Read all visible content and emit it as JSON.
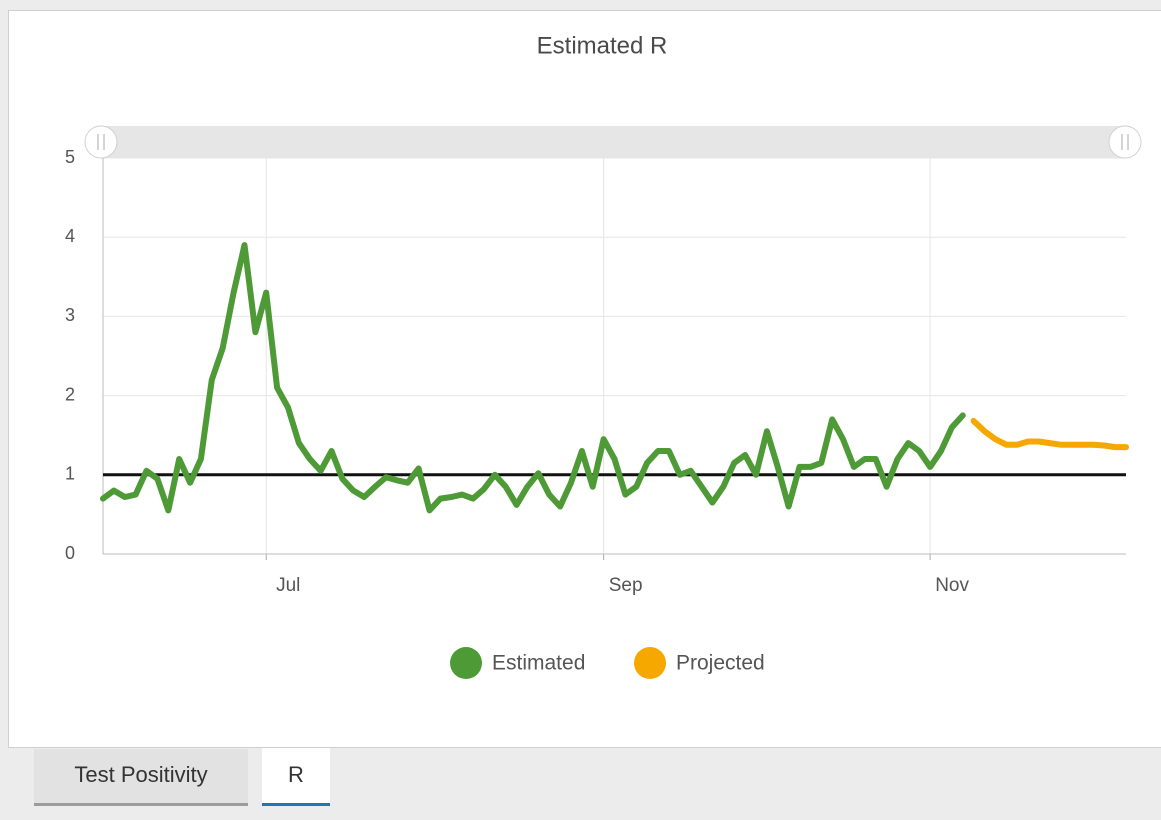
{
  "chart_data": {
    "type": "line",
    "title": "Estimated R",
    "categories": [
      null,
      null,
      null,
      null,
      null,
      null,
      null,
      null,
      null,
      null,
      null,
      null,
      null,
      null,
      null,
      "Jul",
      null,
      null,
      null,
      null,
      null,
      null,
      null,
      null,
      null,
      null,
      null,
      null,
      null,
      null,
      null,
      null,
      null,
      null,
      null,
      null,
      null,
      null,
      null,
      null,
      null,
      null,
      null,
      null,
      null,
      null,
      "Sep",
      null,
      null,
      null,
      null,
      null,
      null,
      null,
      null,
      null,
      null,
      null,
      null,
      null,
      null,
      null,
      null,
      null,
      null,
      null,
      null,
      null,
      null,
      null,
      null,
      null,
      null,
      null,
      null,
      null,
      "Nov",
      null,
      null,
      null,
      null,
      null,
      null,
      null,
      null,
      null,
      null,
      null,
      null,
      null,
      null,
      null,
      null,
      null,
      null
    ],
    "series": [
      {
        "name": "Estimated",
        "color": "#4e9a36",
        "values": [
          0.7,
          0.8,
          0.72,
          0.75,
          1.05,
          0.95,
          0.55,
          1.2,
          0.9,
          1.2,
          2.2,
          2.6,
          3.3,
          3.9,
          2.8,
          3.3,
          2.1,
          1.85,
          1.4,
          1.2,
          1.05,
          1.3,
          0.95,
          0.8,
          0.72,
          0.85,
          0.97,
          0.93,
          0.9,
          1.08,
          0.55,
          0.7,
          0.72,
          0.75,
          0.7,
          0.82,
          1.0,
          0.85,
          0.62,
          0.85,
          1.02,
          0.75,
          0.6,
          0.9,
          1.3,
          0.85,
          1.45,
          1.2,
          0.75,
          0.85,
          1.15,
          1.3,
          1.3,
          1.0,
          1.05,
          0.85,
          0.65,
          0.85,
          1.15,
          1.25,
          1.0,
          1.55,
          1.1,
          0.6,
          1.1,
          1.1,
          1.15,
          1.7,
          1.45,
          1.1,
          1.2,
          1.2,
          0.85,
          1.2,
          1.4,
          1.3,
          1.1,
          1.3,
          1.6,
          1.75,
          null,
          null,
          null,
          null,
          null,
          null,
          null,
          null,
          null,
          null,
          null,
          null,
          null,
          null,
          null
        ]
      },
      {
        "name": "Projected",
        "color": "#f7a800",
        "values": [
          null,
          null,
          null,
          null,
          null,
          null,
          null,
          null,
          null,
          null,
          null,
          null,
          null,
          null,
          null,
          null,
          null,
          null,
          null,
          null,
          null,
          null,
          null,
          null,
          null,
          null,
          null,
          null,
          null,
          null,
          null,
          null,
          null,
          null,
          null,
          null,
          null,
          null,
          null,
          null,
          null,
          null,
          null,
          null,
          null,
          null,
          null,
          null,
          null,
          null,
          null,
          null,
          null,
          null,
          null,
          null,
          null,
          null,
          null,
          null,
          null,
          null,
          null,
          null,
          null,
          null,
          null,
          null,
          null,
          null,
          null,
          null,
          null,
          null,
          null,
          null,
          null,
          null,
          null,
          null,
          1.68,
          1.55,
          1.45,
          1.38,
          1.38,
          1.42,
          1.42,
          1.4,
          1.38,
          1.38,
          1.38,
          1.38,
          1.37,
          1.35,
          1.35
        ]
      }
    ],
    "hline": 1,
    "ylim": [
      0,
      5
    ],
    "yticks": [
      0,
      1,
      2,
      3,
      4,
      5
    ],
    "grid": true,
    "legend": "bottom"
  },
  "tabs": [
    "Test Positivity",
    "R"
  ]
}
